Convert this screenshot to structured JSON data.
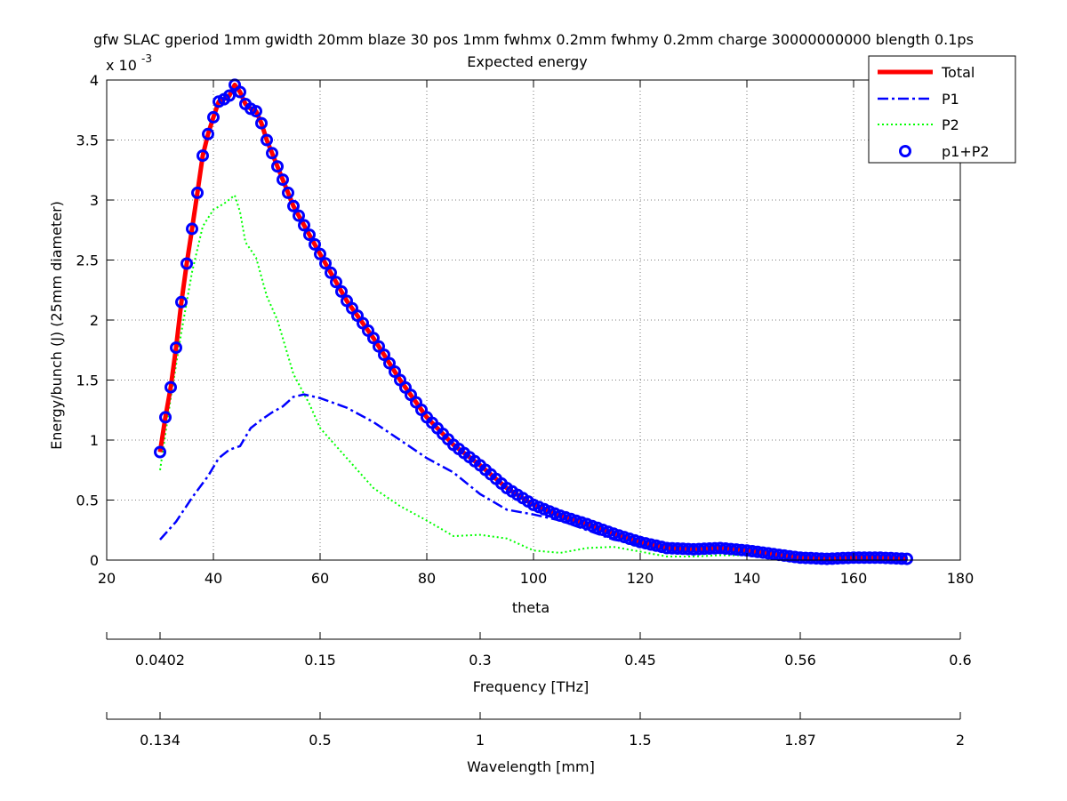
{
  "chart_data": {
    "type": "line",
    "title": "gfw SLAC gperiod 1mm gwidth 20mm blaze 30 pos 1mm fwhmx 0.2mm fwhmy 0.2mm charge 30000000000 blength 0.1ps",
    "subtitle": "Expected energy",
    "xlabel": "theta",
    "ylabel": "Energy/bunch (J) (25mm diameter)",
    "y_multiplier": "x 10",
    "y_multiplier_exp": "-3",
    "xlim": [
      20,
      180
    ],
    "ylim": [
      0,
      4
    ],
    "grid": true,
    "legend_position": "top-right",
    "x_ticks": [
      20,
      40,
      60,
      80,
      100,
      120,
      140,
      160,
      180
    ],
    "y_ticks": [
      0,
      0.5,
      1,
      1.5,
      2,
      2.5,
      3,
      3.5,
      4
    ],
    "x_tick_labels": [
      "20",
      "40",
      "60",
      "80",
      "100",
      "120",
      "140",
      "160",
      "180"
    ],
    "y_tick_labels": [
      "0",
      "0.5",
      "1",
      "1.5",
      "2",
      "2.5",
      "3",
      "3.5",
      "4"
    ],
    "secondary_axes": [
      {
        "label": "Frequency [THz]",
        "tick_positions_theta": [
          30,
          60,
          90,
          120,
          150,
          180
        ],
        "tick_labels": [
          "0.0402",
          "0.15",
          "0.3",
          "0.45",
          "0.56",
          "0.6"
        ]
      },
      {
        "label": "Wavelength [mm]",
        "tick_positions_theta": [
          30,
          60,
          90,
          120,
          150,
          180
        ],
        "tick_labels": [
          "0.134",
          "0.5",
          "1",
          "1.5",
          "1.87",
          "2"
        ]
      }
    ],
    "series": [
      {
        "name": "Total",
        "style": "solid",
        "color": "#ff0000",
        "x": [
          30,
          31,
          32,
          33,
          34,
          35,
          36,
          37,
          38,
          39,
          40,
          41,
          42,
          43,
          44,
          45,
          46,
          47,
          48,
          49,
          50,
          55,
          60,
          65,
          70,
          75,
          80,
          85,
          90,
          95,
          100,
          105,
          110,
          115,
          120,
          125,
          130,
          135,
          140,
          145,
          150,
          155,
          160,
          165,
          170
        ],
        "y": [
          0.9,
          1.19,
          1.44,
          1.77,
          2.15,
          2.47,
          2.76,
          3.06,
          3.37,
          3.55,
          3.69,
          3.82,
          3.84,
          3.87,
          3.96,
          3.9,
          3.8,
          3.76,
          3.74,
          3.64,
          3.5,
          2.95,
          2.55,
          2.16,
          1.85,
          1.5,
          1.19,
          0.96,
          0.79,
          0.6,
          0.46,
          0.37,
          0.3,
          0.22,
          0.15,
          0.1,
          0.09,
          0.1,
          0.08,
          0.05,
          0.02,
          0.01,
          0.02,
          0.02,
          0.01
        ]
      },
      {
        "name": "P1",
        "style": "dash-dot",
        "color": "#0000ff",
        "x": [
          30,
          33,
          36,
          39,
          41,
          43,
          45,
          47,
          49,
          51,
          53,
          55,
          57,
          60,
          65,
          70,
          75,
          80,
          85,
          90,
          95,
          100,
          105,
          110,
          115,
          120,
          125,
          130,
          135,
          140,
          145,
          150,
          155,
          160,
          165,
          170
        ],
        "y": [
          0.17,
          0.32,
          0.52,
          0.7,
          0.85,
          0.92,
          0.95,
          1.1,
          1.17,
          1.23,
          1.28,
          1.36,
          1.38,
          1.35,
          1.27,
          1.15,
          1.0,
          0.85,
          0.73,
          0.55,
          0.42,
          0.38,
          0.33,
          0.25,
          0.17,
          0.13,
          0.09,
          0.08,
          0.09,
          0.07,
          0.04,
          0.02,
          0.01,
          0.01,
          0.01,
          0.01
        ]
      },
      {
        "name": "P2",
        "style": "dotted",
        "color": "#00ff00",
        "x": [
          30,
          32,
          34,
          36,
          38,
          40,
          42,
          44,
          45,
          46,
          48,
          50,
          52,
          55,
          58,
          60,
          65,
          70,
          75,
          80,
          85,
          90,
          95,
          100,
          105,
          110,
          115,
          120,
          125,
          130,
          135,
          140,
          145,
          150,
          155,
          160,
          165,
          170
        ],
        "y": [
          0.75,
          1.35,
          1.9,
          2.4,
          2.78,
          2.92,
          2.97,
          3.04,
          2.9,
          2.65,
          2.52,
          2.2,
          2.0,
          1.55,
          1.3,
          1.1,
          0.85,
          0.6,
          0.45,
          0.33,
          0.2,
          0.21,
          0.18,
          0.08,
          0.06,
          0.1,
          0.11,
          0.07,
          0.03,
          0.03,
          0.04,
          0.04,
          0.03,
          0.01,
          0.01,
          0.0,
          0.0,
          0.0
        ]
      },
      {
        "name": "p1+P2",
        "style": "markers",
        "color": "#0000ff"
      }
    ]
  }
}
